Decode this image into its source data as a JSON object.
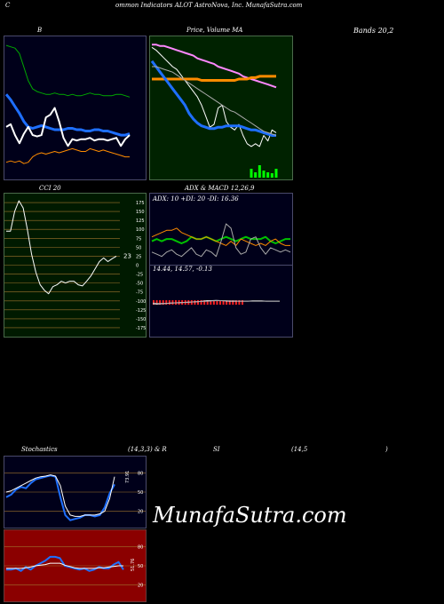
{
  "header": {
    "left_c": "C",
    "title": "ommon  Indicators ALOT AstroNova, Inc. MunafaSutra.com"
  },
  "labels": {
    "b": "B",
    "price_volume": "Price,  Volume  MA",
    "bands": "Bands 20,2",
    "cci": "CCI 20",
    "adx_macd": "ADX  & MACD 12,26,9",
    "adx_vals": "ADX: 10  +DI: 20  -DI: 16.36",
    "macd_vals": "14.44,  14.57,  -0.13",
    "stoch": "Stochastics",
    "stoch_params": "(14,3,3) & R",
    "si": "SI",
    "rsi_params": "(14,5",
    "rsi_close": ")",
    "cci_value": "23",
    "stoch_value": "73.91",
    "rsi_value": "51.76",
    "brand": "MunafaSutra.com"
  },
  "colors": {
    "panel_dark": "#00001a",
    "price_bg": "#002200",
    "cci_bg": "#001a00",
    "grid_gold": "#a0742c",
    "rsi_bg": "#8b0000",
    "blue": "#1e6fff",
    "orange": "#ff8c00",
    "green": "#00c000",
    "pink": "#ff88ff",
    "white": "#ffffff"
  },
  "chart_data": [
    {
      "type": "line",
      "panel": "B",
      "series": [
        {
          "color": "#00aa00",
          "values": [
            96,
            95,
            94,
            90,
            80,
            70,
            64,
            62,
            61,
            60,
            60,
            61,
            60,
            60,
            59,
            60,
            59,
            59,
            60,
            61,
            60,
            60,
            59,
            59,
            59,
            60,
            60,
            59,
            58
          ]
        },
        {
          "color": "#1e6fff",
          "values": [
            60,
            56,
            51,
            46,
            40,
            36,
            35,
            36,
            37,
            36,
            35,
            34,
            34,
            34,
            35,
            35,
            34,
            34,
            33,
            33,
            34,
            34,
            33,
            33,
            32,
            31,
            30,
            30,
            31
          ]
        },
        {
          "color": "#ffffff",
          "values": [
            36,
            38,
            30,
            24,
            31,
            36,
            30,
            29,
            30,
            43,
            45,
            50,
            40,
            28,
            22,
            27,
            26,
            27,
            27,
            28,
            26,
            27,
            27,
            26,
            27,
            28,
            22,
            27,
            30
          ]
        },
        {
          "color": "#ff8c00",
          "values": [
            10,
            11,
            10,
            11,
            9,
            10,
            14,
            16,
            17,
            16,
            17,
            18,
            17,
            18,
            19,
            20,
            19,
            18,
            18,
            20,
            19,
            18,
            19,
            18,
            17,
            16,
            15,
            14,
            14
          ]
        }
      ]
    },
    {
      "type": "line",
      "panel": "Price, Volume MA",
      "series": [
        {
          "name": "Price",
          "color": "#ffffff",
          "values": [
            94,
            92,
            89,
            86,
            83,
            80,
            78,
            74,
            70,
            66,
            62,
            58,
            52,
            44,
            36,
            38,
            50,
            52,
            40,
            36,
            34,
            38,
            30,
            24,
            22,
            24,
            22,
            30,
            26,
            34,
            32
          ]
        },
        {
          "color": "#ff88ff",
          "values": [
            96,
            96,
            95,
            95,
            94,
            93,
            92,
            91,
            90,
            89,
            88,
            86,
            85,
            84,
            83,
            82,
            80,
            79,
            78,
            77,
            76,
            75,
            73,
            72,
            71,
            70,
            69,
            68,
            67,
            66,
            65
          ]
        },
        {
          "color": "#ff8c00",
          "values": [
            71,
            71,
            71,
            71,
            71,
            71,
            71,
            71,
            71,
            71,
            71,
            71,
            70,
            70,
            70,
            70,
            70,
            70,
            70,
            70,
            70,
            71,
            71,
            71,
            72,
            72,
            73,
            73,
            73,
            73,
            73
          ]
        },
        {
          "color": "#1e6fff",
          "values": [
            84,
            80,
            76,
            72,
            68,
            64,
            60,
            56,
            52,
            46,
            42,
            39,
            37,
            36,
            35,
            35,
            36,
            36,
            37,
            37,
            37,
            37,
            36,
            35,
            34,
            34,
            33,
            32,
            31,
            30,
            30
          ]
        },
        {
          "color": "#aaaaaa",
          "values": [
            80,
            80,
            79,
            78,
            77,
            76,
            74,
            72,
            70,
            68,
            66,
            64,
            62,
            60,
            58,
            56,
            54,
            52,
            50,
            48,
            47,
            45,
            43,
            41,
            39,
            37,
            35,
            33,
            32,
            31,
            30
          ]
        }
      ],
      "volume": [
        0,
        0,
        0,
        0,
        0,
        0,
        0,
        0,
        0,
        0,
        0,
        0,
        0,
        0,
        0,
        0,
        0,
        0,
        0,
        0,
        0,
        0,
        0,
        0,
        1,
        0.6,
        1.4,
        0.8,
        0.6,
        0.5,
        1
      ]
    },
    {
      "type": "line",
      "panel": "CCI 20",
      "ticks": [
        "175",
        "150",
        "125",
        "100",
        "75",
        "50",
        "25",
        "0",
        "-25",
        "-50",
        "-75",
        "-100",
        "-125",
        "-150",
        "-175"
      ],
      "tick_values": [
        175,
        150,
        125,
        100,
        75,
        50,
        25,
        0,
        -25,
        -50,
        -75,
        -100,
        -125,
        -150,
        -175
      ],
      "ylim": [
        -190,
        190
      ],
      "series": [
        {
          "name": "CCI",
          "color": "#ffffff",
          "values": [
            95,
            95,
            150,
            180,
            160,
            100,
            30,
            -20,
            -55,
            -70,
            -80,
            -60,
            -55,
            -45,
            -50,
            -45,
            -45,
            -55,
            -58,
            -45,
            -30,
            -10,
            10,
            20,
            10,
            18,
            25
          ]
        }
      ]
    },
    {
      "type": "line",
      "panel": "ADX & MACD",
      "series": [
        {
          "name": "+DI",
          "color": "#00c000",
          "values": [
            20,
            22,
            20,
            22,
            22,
            20,
            18,
            20,
            24,
            22,
            22,
            24,
            22,
            20,
            22,
            24,
            22,
            20,
            22,
            24,
            22,
            22,
            22,
            24,
            20,
            18,
            20,
            22,
            22
          ]
        },
        {
          "name": "-DI",
          "color": "#ff8c00",
          "values": [
            24,
            26,
            28,
            30,
            30,
            32,
            28,
            26,
            24,
            22,
            22,
            24,
            22,
            20,
            18,
            16,
            20,
            16,
            22,
            20,
            18,
            16,
            18,
            16,
            20,
            22,
            18,
            16,
            16
          ]
        },
        {
          "name": "ADX",
          "color": "#aaaaaa",
          "values": [
            10,
            8,
            6,
            10,
            12,
            8,
            6,
            10,
            14,
            8,
            6,
            12,
            10,
            6,
            20,
            36,
            32,
            14,
            8,
            10,
            22,
            24,
            14,
            8,
            14,
            12,
            10,
            12,
            10
          ]
        }
      ],
      "macd": [
        4,
        3,
        4,
        5,
        6,
        7,
        8,
        9,
        10,
        11,
        12,
        14,
        16,
        16,
        17,
        16,
        15,
        14,
        14,
        14,
        14,
        14,
        15,
        15,
        15,
        14,
        14,
        14,
        14
      ],
      "signal": [
        6,
        5,
        5,
        5,
        6,
        7,
        8,
        9,
        10,
        11,
        12,
        13,
        14,
        15,
        16,
        16,
        16,
        15,
        15,
        14,
        14,
        14,
        14,
        14,
        14,
        14,
        14,
        14,
        14
      ]
    },
    {
      "type": "line",
      "panel": "Stochastics",
      "ticks": [
        "80",
        "50",
        "20"
      ],
      "tick_values": [
        80,
        50,
        20
      ],
      "ylim": [
        0,
        100
      ],
      "series": [
        {
          "color": "#1e6fff",
          "values": [
            42,
            46,
            54,
            58,
            56,
            64,
            70,
            72,
            74,
            76,
            74,
            42,
            14,
            6,
            8,
            10,
            14,
            14,
            12,
            14,
            26,
            48,
            62
          ]
        },
        {
          "color": "#ffffff",
          "values": [
            50,
            52,
            56,
            60,
            64,
            68,
            72,
            74,
            75,
            77,
            75,
            60,
            28,
            14,
            12,
            12,
            14,
            14,
            14,
            16,
            20,
            40,
            74
          ]
        }
      ]
    },
    {
      "type": "line",
      "panel": "RSI",
      "ticks": [
        "80",
        "50",
        "20"
      ],
      "tick_values": [
        80,
        50,
        20
      ],
      "ylim": [
        0,
        100
      ],
      "series": [
        {
          "color": "#1e6fff",
          "values": [
            44,
            44,
            46,
            42,
            48,
            44,
            50,
            54,
            58,
            64,
            64,
            62,
            50,
            48,
            46,
            44,
            46,
            42,
            44,
            48,
            46,
            46,
            52,
            56,
            44
          ]
        },
        {
          "color": "#ffffff",
          "values": [
            46,
            46,
            46,
            46,
            47,
            48,
            50,
            51,
            52,
            54,
            54,
            54,
            51,
            49,
            47,
            46,
            46,
            46,
            46,
            47,
            47,
            48,
            49,
            50,
            50
          ]
        }
      ]
    }
  ]
}
